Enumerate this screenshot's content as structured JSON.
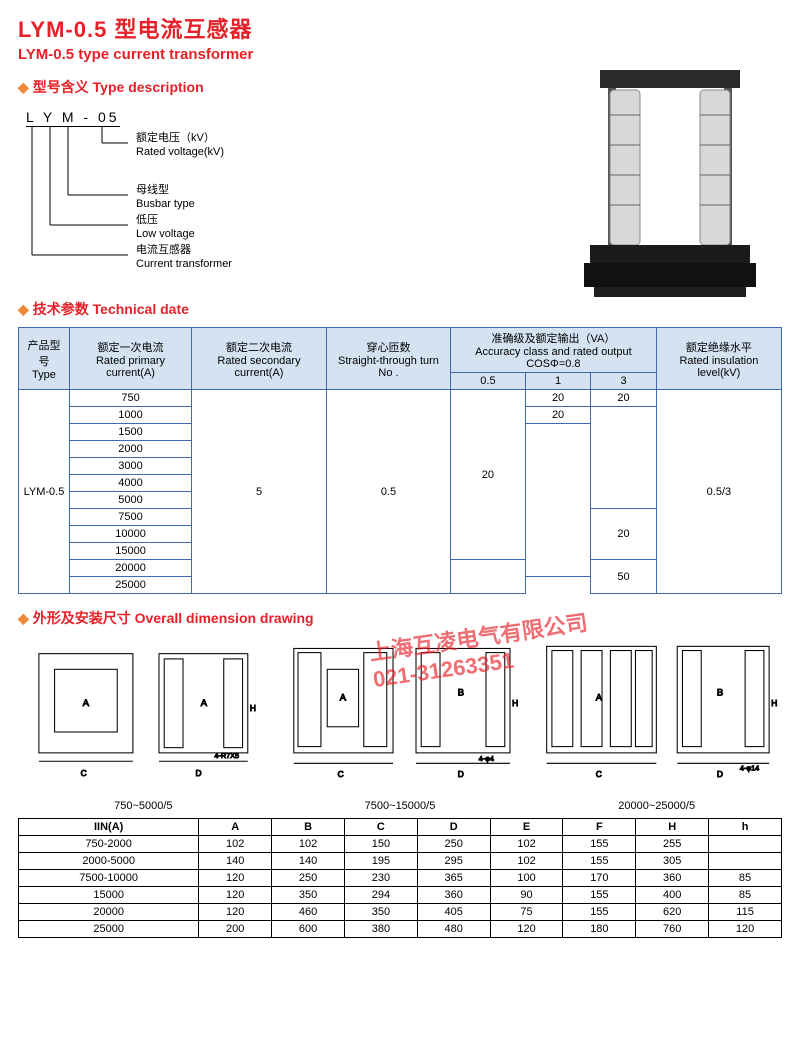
{
  "header": {
    "title_cn": "LYM-0.5 型电流互感器",
    "title_en": "LYM-0.5 type current transformer"
  },
  "sections": {
    "typedesc": "型号含义 Type description",
    "tech": "技术参数 Technical date",
    "dims": "外形及安装尺寸 Overall dimension drawing"
  },
  "typecode": {
    "code": "L Y M - 05",
    "items": [
      {
        "cn": "额定电压（kV）",
        "en": "Rated voltage(kV)"
      },
      {
        "cn": "母线型",
        "en": "Busbar type"
      },
      {
        "cn": "低压",
        "en": "Low voltage"
      },
      {
        "cn": "电流互感器",
        "en": "Current transformer"
      }
    ]
  },
  "tech_table": {
    "headers": {
      "type": {
        "cn": "产品型号",
        "en": "Type"
      },
      "primary": {
        "cn": "额定一次电流",
        "en": "Rated primary current(A)"
      },
      "secondary": {
        "cn": "额定二次电流",
        "en": "Rated secondary current(A)"
      },
      "turns": {
        "cn": "穿心匝数",
        "en": "Straight-through turn No ."
      },
      "accuracy": {
        "cn": "准确级及额定输出（VA）",
        "en": "Accuracy class and rated output COSΦ=0.8"
      },
      "acc_sub": [
        "0.5",
        "1",
        "3"
      ],
      "insulation": {
        "cn": "额定绝缘水平",
        "en": "Rated insulation level(kV)"
      }
    },
    "type_value": "LYM-0.5",
    "secondary_value": "5",
    "turns_value": "0.5",
    "insulation_value": "0.5/3",
    "primary_values": [
      "750",
      "1000",
      "1500",
      "2000",
      "3000",
      "4000",
      "5000",
      "7500",
      "10000",
      "15000",
      "20000",
      "25000"
    ],
    "acc_05_group": "20",
    "acc_1_r1": "20",
    "acc_1_r2": "20",
    "acc_3_r1": "20",
    "acc_3_group2": "20",
    "acc_3_last": "50"
  },
  "dim_captions": [
    "750~5000/5",
    "7500~15000/5",
    "20000~25000/5"
  ],
  "dim_table": {
    "headers": [
      "IIN(A)",
      "A",
      "B",
      "C",
      "D",
      "E",
      "F",
      "H",
      "h"
    ],
    "rows": [
      [
        "750-2000",
        "102",
        "102",
        "150",
        "250",
        "102",
        "155",
        "255",
        ""
      ],
      [
        "2000-5000",
        "140",
        "140",
        "195",
        "295",
        "102",
        "155",
        "305",
        ""
      ],
      [
        "7500-10000",
        "120",
        "250",
        "230",
        "365",
        "100",
        "170",
        "360",
        "85"
      ],
      [
        "15000",
        "120",
        "350",
        "294",
        "360",
        "90",
        "155",
        "400",
        "85"
      ],
      [
        "20000",
        "120",
        "460",
        "350",
        "405",
        "75",
        "155",
        "620",
        "115"
      ],
      [
        "25000",
        "200",
        "600",
        "380",
        "480",
        "120",
        "180",
        "760",
        "120"
      ]
    ]
  },
  "watermark": {
    "line1": "上海互凌电气有限公司",
    "line2": "021-31263351"
  },
  "colors": {
    "red": "#e7212a",
    "orange": "#f08a3a",
    "blue_border": "#4169b2",
    "blue_bg": "#d5e2f2"
  }
}
